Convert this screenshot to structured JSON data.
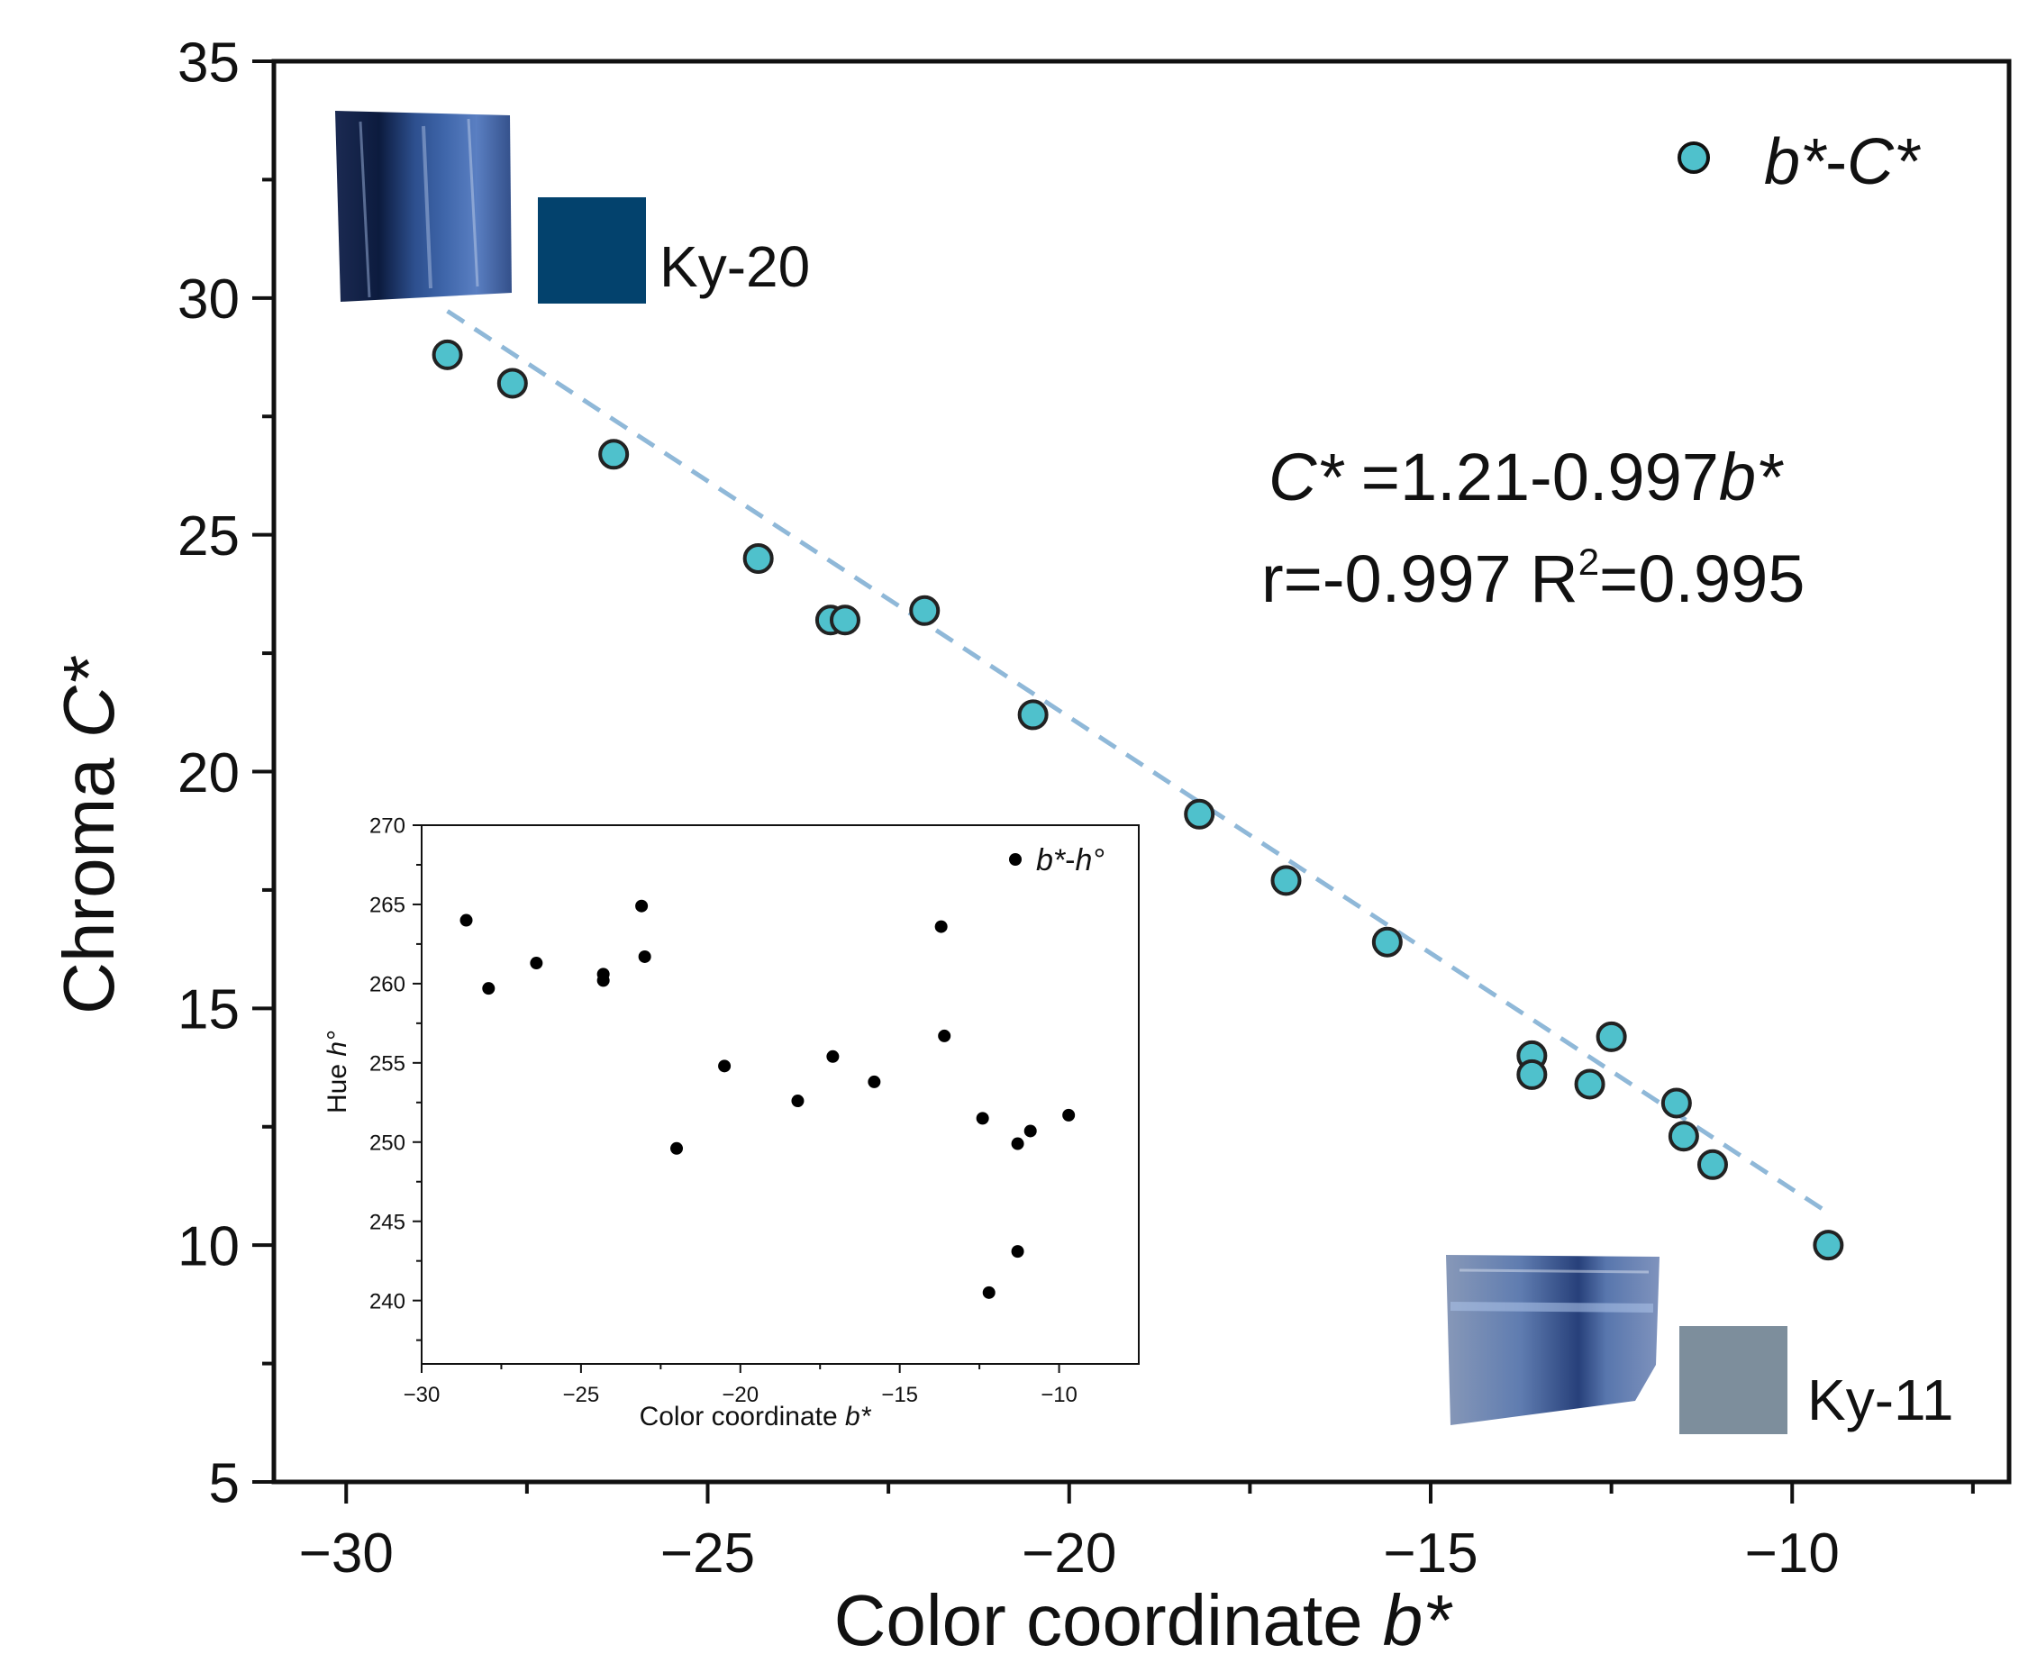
{
  "chart_data": [
    {
      "type": "scatter",
      "xlabel": "Color coordinate ",
      "xlabel_italic": "b*",
      "ylabel": "Chroma ",
      "ylabel_italic": "C*",
      "xlim": [
        -31,
        -7
      ],
      "ylim": [
        5,
        35
      ],
      "xticks": [
        -30,
        -25,
        -20,
        -15,
        -10
      ],
      "yticks": [
        5,
        10,
        15,
        20,
        25,
        30,
        35
      ],
      "tick_labels_x": [
        "−30",
        "−25",
        "−20",
        "−15",
        "−10"
      ],
      "tick_labels_y": [
        "5",
        "10",
        "15",
        "20",
        "25",
        "30",
        "35"
      ],
      "legend": {
        "italic": "b*",
        "sep": "-",
        "italic2": "C*",
        "placement": "top-right"
      },
      "marker_color": "#4fc1cc",
      "fit_color": "#8fb8d8",
      "fit": {
        "intercept": 1.21,
        "slope": -0.997,
        "x_range": [
          -28.6,
          -9.5
        ]
      },
      "equation": {
        "lhs_italic": "C*",
        "text": " =1.21-0.997",
        "var_italic": "b*"
      },
      "stats": {
        "r": "r=-0.997 R",
        "sup": "2",
        "r2": "=0.995"
      },
      "series": [
        {
          "name": "b*-C*",
          "x": [
            -28.6,
            -27.7,
            -26.3,
            -24.3,
            -23.3,
            -23.1,
            -22.0,
            -20.5,
            -18.2,
            -17.0,
            -15.6,
            -13.6,
            -13.6,
            -12.8,
            -12.5,
            -11.6,
            -11.5,
            -11.1,
            -9.5
          ],
          "y": [
            28.8,
            28.2,
            26.7,
            24.5,
            23.2,
            23.2,
            23.4,
            21.2,
            19.1,
            17.7,
            16.4,
            14.0,
            13.6,
            13.4,
            14.4,
            13.0,
            12.3,
            11.7,
            10.0
          ]
        }
      ],
      "annotations": [
        {
          "label": "Ky-20",
          "swatch_color": "#03426d"
        },
        {
          "label": "Ky-11",
          "swatch_color": "#7d8e9c"
        }
      ]
    },
    {
      "type": "scatter",
      "role": "inset",
      "xlabel": "Color coordinate ",
      "xlabel_italic": "b*",
      "ylabel": "Hue ",
      "ylabel_italic": "h°",
      "xlim": [
        -30,
        -7.5
      ],
      "ylim": [
        236,
        270
      ],
      "xticks": [
        -30,
        -25,
        -20,
        -15,
        -10
      ],
      "yticks": [
        240,
        245,
        250,
        255,
        260,
        265,
        270
      ],
      "tick_labels_x": [
        "−30",
        "−25",
        "−20",
        "−15",
        "−10"
      ],
      "tick_labels_y": [
        "240",
        "245",
        "250",
        "255",
        "260",
        "265",
        "270"
      ],
      "legend": {
        "italic": "b*",
        "sep": "-",
        "italic2": "h°",
        "placement": "top-right"
      },
      "marker_color": "#000000",
      "series": [
        {
          "name": "b*-h°",
          "x": [
            -28.6,
            -27.9,
            -26.4,
            -24.3,
            -24.3,
            -23.1,
            -23.0,
            -22.0,
            -20.5,
            -18.2,
            -17.1,
            -15.8,
            -13.7,
            -13.6,
            -12.4,
            -12.2,
            -11.3,
            -11.3,
            -10.9,
            -9.7
          ],
          "y": [
            264.0,
            259.7,
            261.3,
            260.6,
            260.2,
            264.9,
            261.7,
            249.6,
            254.8,
            252.6,
            255.4,
            253.8,
            263.6,
            256.7,
            251.5,
            240.5,
            243.1,
            249.9,
            250.7,
            251.7
          ]
        }
      ]
    }
  ]
}
